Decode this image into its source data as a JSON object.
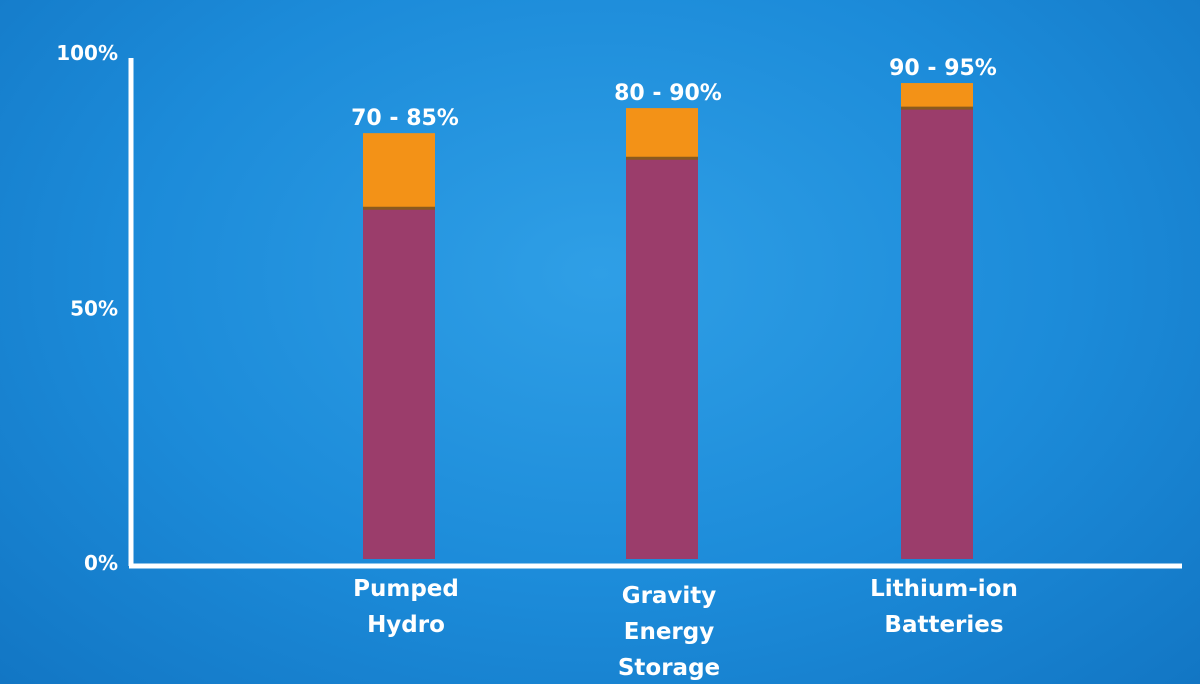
{
  "chart_data": {
    "type": "bar",
    "stacked": true,
    "categories": [
      "Pumped Hydro",
      "Gravity Energy Storage",
      "Lithium-ion Batteries"
    ],
    "category_lines": [
      [
        "Pumped",
        "Hydro"
      ],
      [
        "Gravity",
        "Energy",
        "Storage"
      ],
      [
        "Lithium-ion",
        "Batteries"
      ]
    ],
    "series": [
      {
        "values": [
          70,
          80,
          90
        ],
        "color": "#9b3d6b"
      },
      {
        "values": [
          15,
          10,
          5
        ],
        "color": "#f39217"
      }
    ],
    "data_labels": [
      "70 - 85%",
      "80 - 90%",
      "90 - 95%"
    ],
    "ylim": [
      0,
      100
    ],
    "yticks": [
      {
        "value": 0,
        "label": "0%"
      },
      {
        "value": 50,
        "label": "50%"
      },
      {
        "value": 100,
        "label": "100%"
      }
    ],
    "title": "",
    "xlabel": "",
    "ylabel": "",
    "grid": false,
    "legend": "none",
    "background_color": "#1c8bd9",
    "axis_color": "#ffffff"
  }
}
